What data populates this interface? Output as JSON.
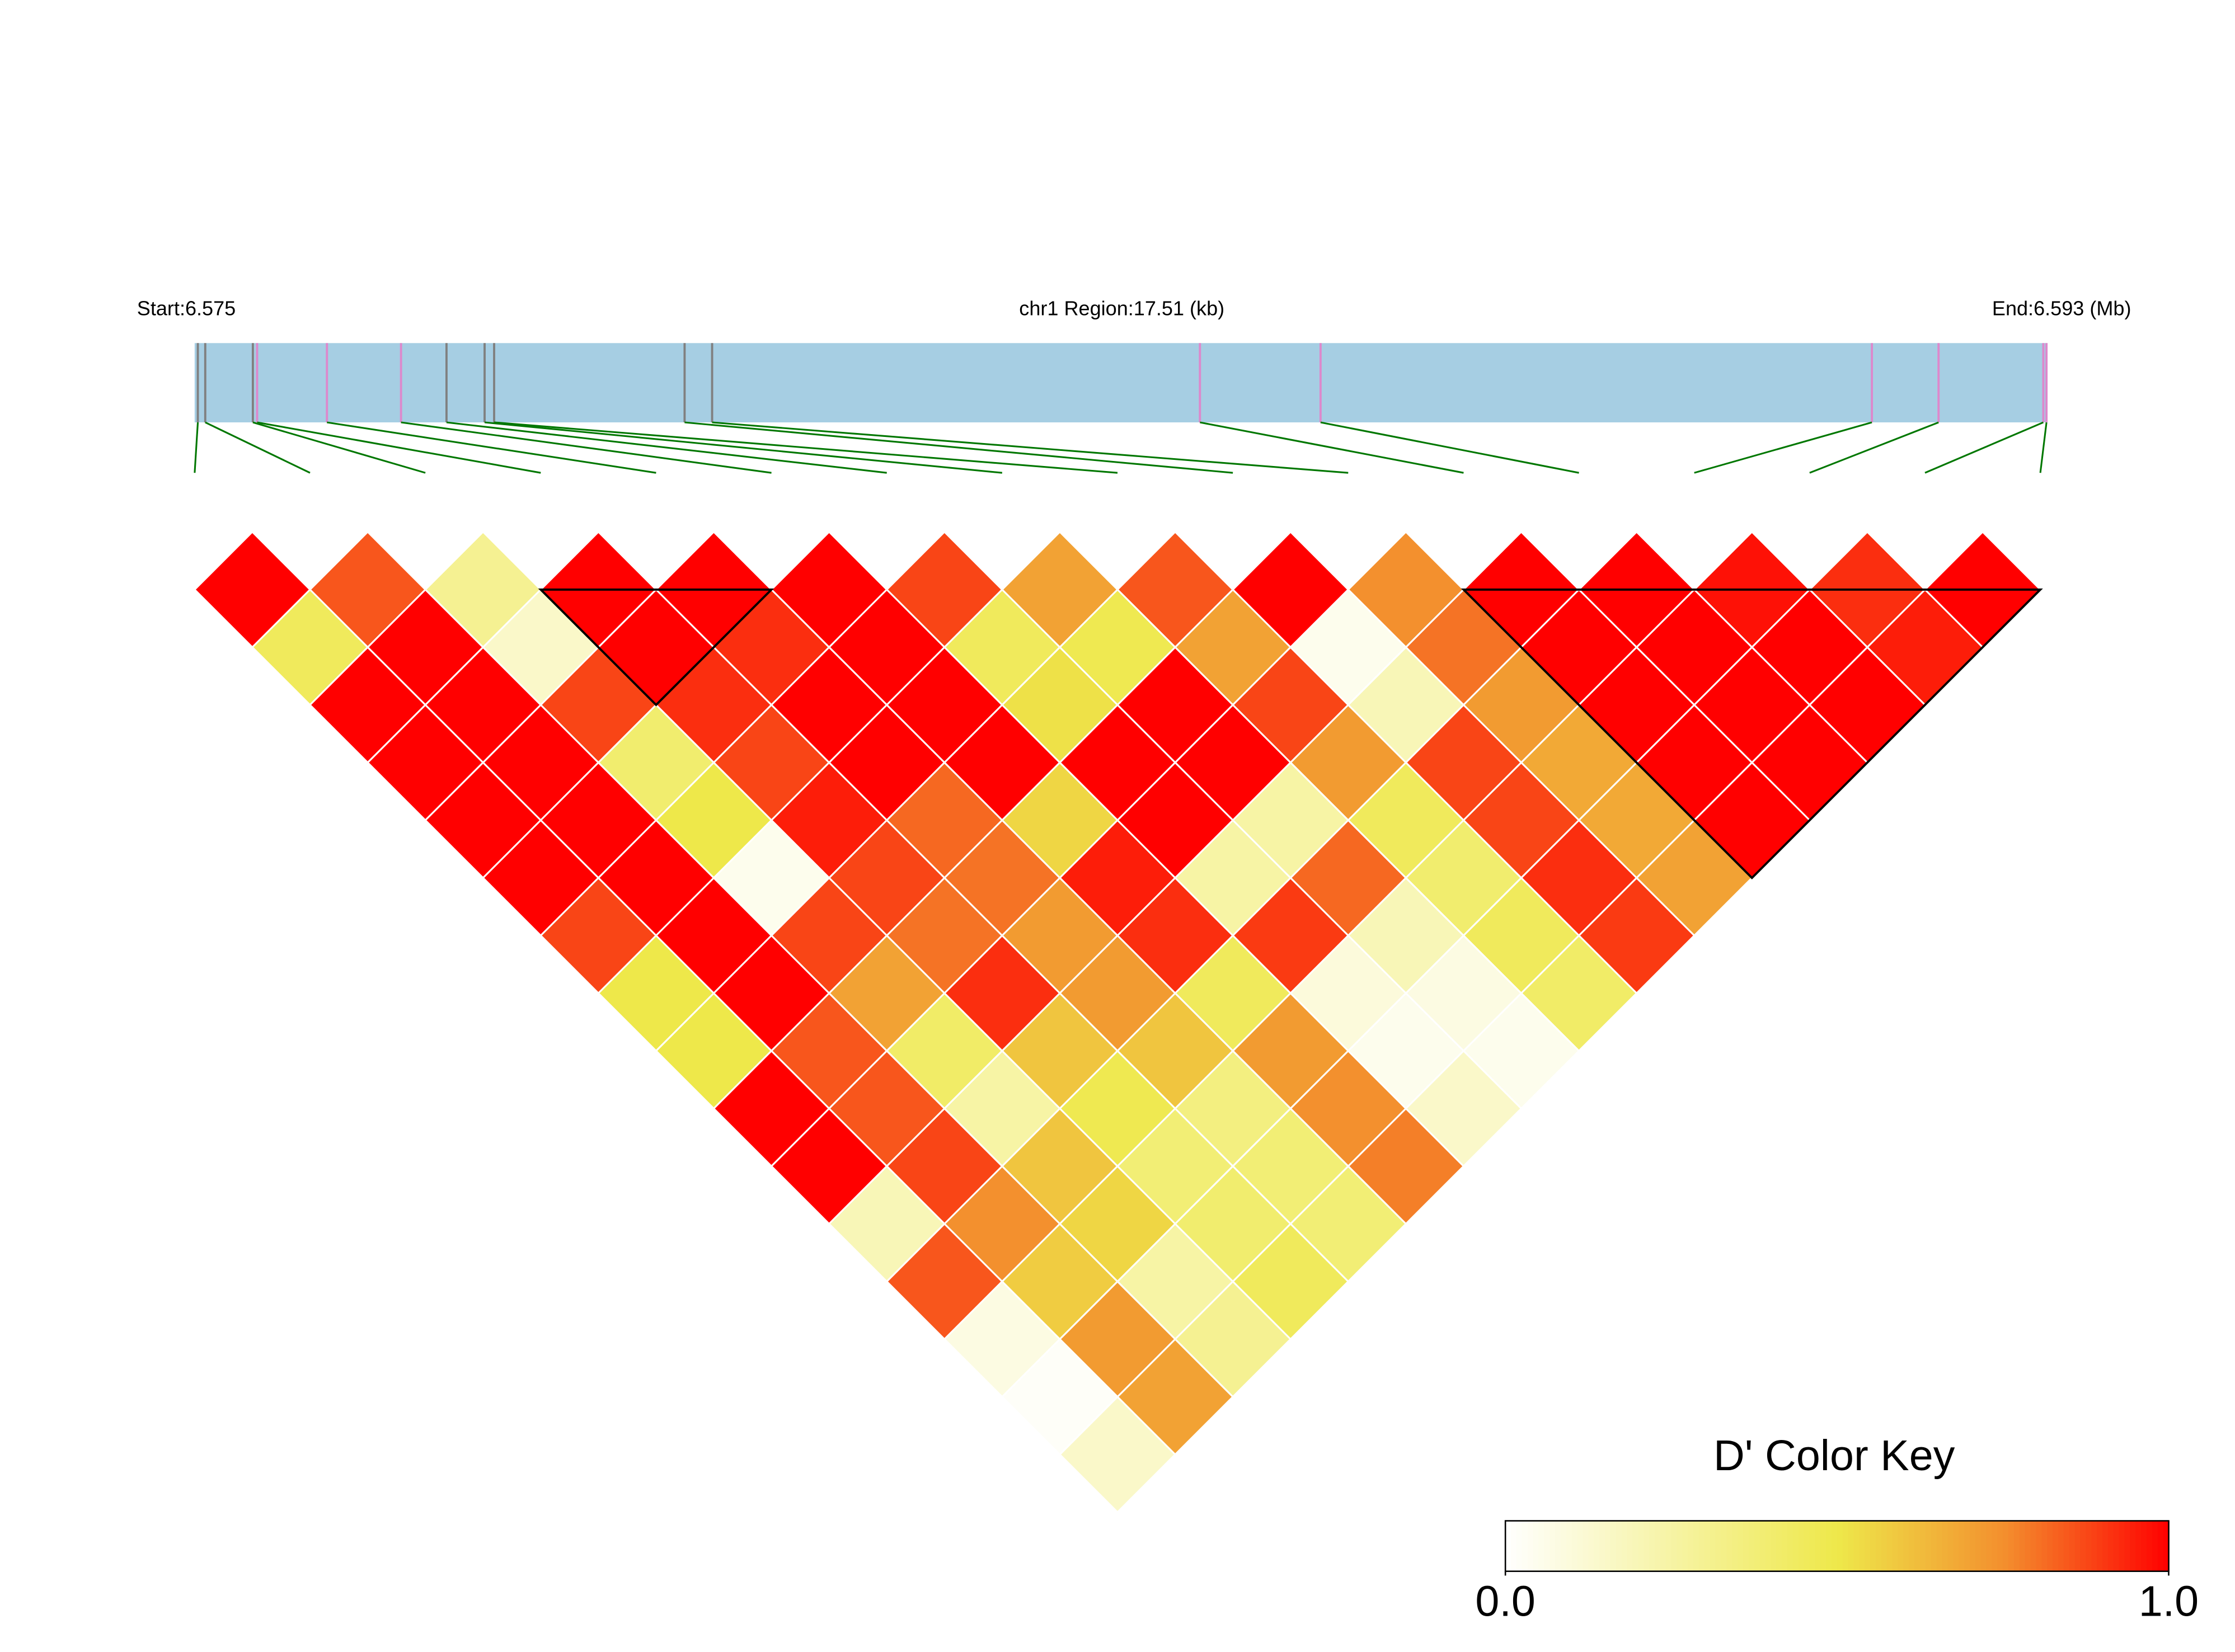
{
  "chart_data": {
    "type": "ld-heatmap",
    "track": {
      "start_label": "Start:6.575",
      "region_label": "chr1 Region:17.51 (kb)",
      "end_label": "End:6.593 (Mb)",
      "xlim": [
        0,
        17.51
      ],
      "bar_color": "#a6cee3",
      "link_color": "#007700",
      "snps": [
        {
          "pos": 0.03,
          "color": "#808080"
        },
        {
          "pos": 0.1,
          "color": "#808080"
        },
        {
          "pos": 0.55,
          "color": "#808080"
        },
        {
          "pos": 0.59,
          "color": "#dd88cc"
        },
        {
          "pos": 1.25,
          "color": "#dd88cc"
        },
        {
          "pos": 1.95,
          "color": "#dd88cc"
        },
        {
          "pos": 2.38,
          "color": "#808080"
        },
        {
          "pos": 2.74,
          "color": "#808080"
        },
        {
          "pos": 2.83,
          "color": "#808080"
        },
        {
          "pos": 4.63,
          "color": "#808080"
        },
        {
          "pos": 4.89,
          "color": "#808080"
        },
        {
          "pos": 9.5,
          "color": "#dd88cc"
        },
        {
          "pos": 10.64,
          "color": "#dd88cc"
        },
        {
          "pos": 15.85,
          "color": "#dd88cc"
        },
        {
          "pos": 16.48,
          "color": "#dd88cc"
        },
        {
          "pos": 17.47,
          "color": "#dd88cc"
        },
        {
          "pos": 17.5,
          "color": "#dd88cc"
        }
      ]
    },
    "values": [
      [
        1,
        0.85,
        0.3,
        1,
        1,
        1,
        0.88,
        0.7,
        0.85,
        1,
        0.75,
        1,
        1,
        0.97,
        0.92,
        1
      ],
      [
        0.45,
        1,
        0.15,
        1,
        0.92,
        1,
        0.45,
        0.48,
        0.7,
        0.05,
        0.8,
        1,
        1,
        1,
        0.95
      ],
      [
        1,
        1,
        0.88,
        0.92,
        1,
        1,
        0.52,
        1,
        0.88,
        0.2,
        0.72,
        1,
        1,
        1
      ],
      [
        1,
        1,
        0.4,
        0.88,
        1,
        1,
        1,
        1,
        0.72,
        0.88,
        0.68,
        1,
        1
      ],
      [
        1,
        1,
        0.5,
        0.95,
        0.82,
        0.55,
        1,
        0.25,
        0.45,
        0.88,
        0.68,
        1
      ],
      [
        1,
        1,
        0.05,
        0.88,
        0.8,
        0.95,
        0.25,
        0.82,
        0.4,
        0.92,
        0.7
      ],
      [
        0.88,
        1,
        0.88,
        0.8,
        0.72,
        0.92,
        0.9,
        0.2,
        0.45,
        0.9
      ],
      [
        0.5,
        1,
        0.7,
        0.92,
        0.72,
        0.45,
        0.1,
        0.08,
        0.42
      ],
      [
        0.5,
        0.85,
        0.42,
        0.6,
        0.6,
        0.72,
        0.05,
        0.05
      ],
      [
        1,
        0.85,
        0.25,
        0.48,
        0.35,
        0.75,
        0.15
      ],
      [
        1,
        0.88,
        0.6,
        0.38,
        0.38,
        0.78
      ],
      [
        0.2,
        0.75,
        0.55,
        0.4,
        0.38
      ],
      [
        0.85,
        0.58,
        0.25,
        0.45
      ],
      [
        0.08,
        0.72,
        0.3
      ],
      [
        0.02,
        0.7
      ],
      [
        0.15
      ]
    ],
    "blocks": [
      [
        3,
        5
      ],
      [
        11,
        16
      ]
    ],
    "color_key": {
      "title": "D' Color Key",
      "lim": [
        0,
        1
      ],
      "ticks": [
        {
          "value": 0,
          "label": "0.0"
        },
        {
          "value": 1,
          "label": "1.0"
        }
      ],
      "stops": [
        {
          "value": 0,
          "color": "#ffffff"
        },
        {
          "value": 0.5,
          "color": "#eee84a"
        },
        {
          "value": 0.75,
          "color": "#f3902e"
        },
        {
          "value": 1,
          "color": "#ff0000"
        }
      ]
    }
  }
}
